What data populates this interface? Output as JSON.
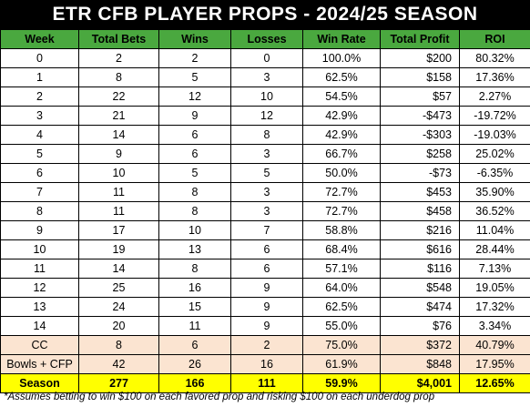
{
  "title": "ETR CFB PLAYER PROPS - 2024/25 SEASON",
  "headers": [
    "Week",
    "Total Bets",
    "Wins",
    "Losses",
    "Win Rate",
    "Total Profit",
    "ROI"
  ],
  "rows": [
    [
      "0",
      "2",
      "2",
      "0",
      "100.0%",
      "$200",
      "80.32%"
    ],
    [
      "1",
      "8",
      "5",
      "3",
      "62.5%",
      "$158",
      "17.36%"
    ],
    [
      "2",
      "22",
      "12",
      "10",
      "54.5%",
      "$57",
      "2.27%"
    ],
    [
      "3",
      "21",
      "9",
      "12",
      "42.9%",
      "-$473",
      "-19.72%"
    ],
    [
      "4",
      "14",
      "6",
      "8",
      "42.9%",
      "-$303",
      "-19.03%"
    ],
    [
      "5",
      "9",
      "6",
      "3",
      "66.7%",
      "$258",
      "25.02%"
    ],
    [
      "6",
      "10",
      "5",
      "5",
      "50.0%",
      "-$73",
      "-6.35%"
    ],
    [
      "7",
      "11",
      "8",
      "3",
      "72.7%",
      "$453",
      "35.90%"
    ],
    [
      "8",
      "11",
      "8",
      "3",
      "72.7%",
      "$458",
      "36.52%"
    ],
    [
      "9",
      "17",
      "10",
      "7",
      "58.8%",
      "$216",
      "11.04%"
    ],
    [
      "10",
      "19",
      "13",
      "6",
      "68.4%",
      "$616",
      "28.44%"
    ],
    [
      "11",
      "14",
      "8",
      "6",
      "57.1%",
      "$116",
      "7.13%"
    ],
    [
      "12",
      "25",
      "16",
      "9",
      "64.0%",
      "$548",
      "19.05%"
    ],
    [
      "13",
      "24",
      "15",
      "9",
      "62.5%",
      "$474",
      "17.32%"
    ],
    [
      "14",
      "20",
      "11",
      "9",
      "55.0%",
      "$76",
      "3.34%"
    ]
  ],
  "postseason_rows": [
    [
      "CC",
      "8",
      "6",
      "2",
      "75.0%",
      "$372",
      "40.79%"
    ],
    [
      "Bowls + CFP",
      "42",
      "26",
      "16",
      "61.9%",
      "$848",
      "17.95%"
    ]
  ],
  "season_row": [
    "Season",
    "277",
    "166",
    "111",
    "59.9%",
    "$4,001",
    "12.65%"
  ],
  "footnote": "*Assumes betting to win $100 on each favored prop and risking $100 on each underdog prop",
  "colors": {
    "header": "#4aa83f",
    "title_bg": "#000000",
    "postseason": "#fbe4d1",
    "season": "#ffff00"
  }
}
